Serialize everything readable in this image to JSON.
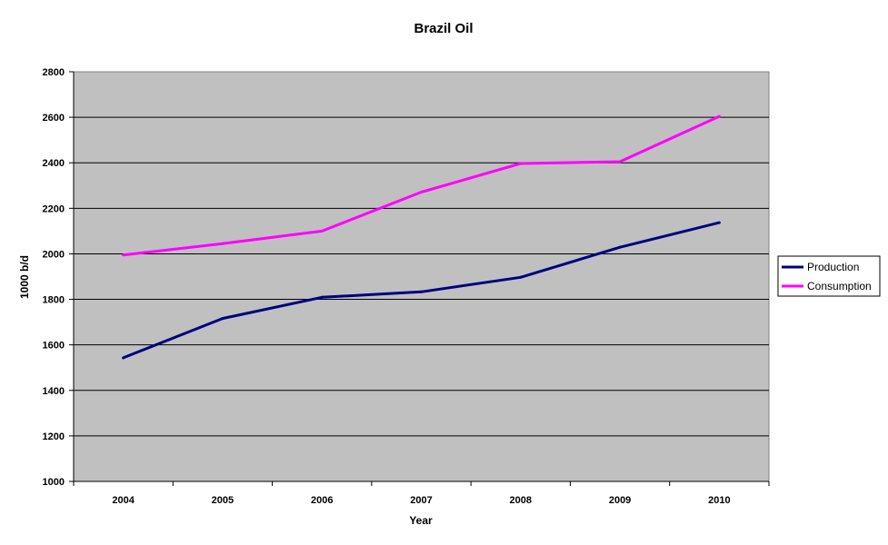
{
  "chart_data": {
    "type": "line",
    "title": "Brazil Oil",
    "xlabel": "Year",
    "ylabel": "1000 b/d",
    "categories": [
      "2004",
      "2005",
      "2006",
      "2007",
      "2008",
      "2009",
      "2010"
    ],
    "ylim": [
      1000,
      2800
    ],
    "yticks": [
      1000,
      1200,
      1400,
      1600,
      1800,
      2000,
      2200,
      2400,
      2600,
      2800
    ],
    "grid": true,
    "legend_position": "right",
    "plot_background": "#c0c0c0",
    "series": [
      {
        "name": "Production",
        "color": "#000080",
        "values": [
          1543,
          1716,
          1809,
          1833,
          1897,
          2029,
          2137
        ]
      },
      {
        "name": "Consumption",
        "color": "#ff00ff",
        "values": [
          1995,
          2045,
          2100,
          2271,
          2397,
          2405,
          2604
        ]
      }
    ]
  }
}
